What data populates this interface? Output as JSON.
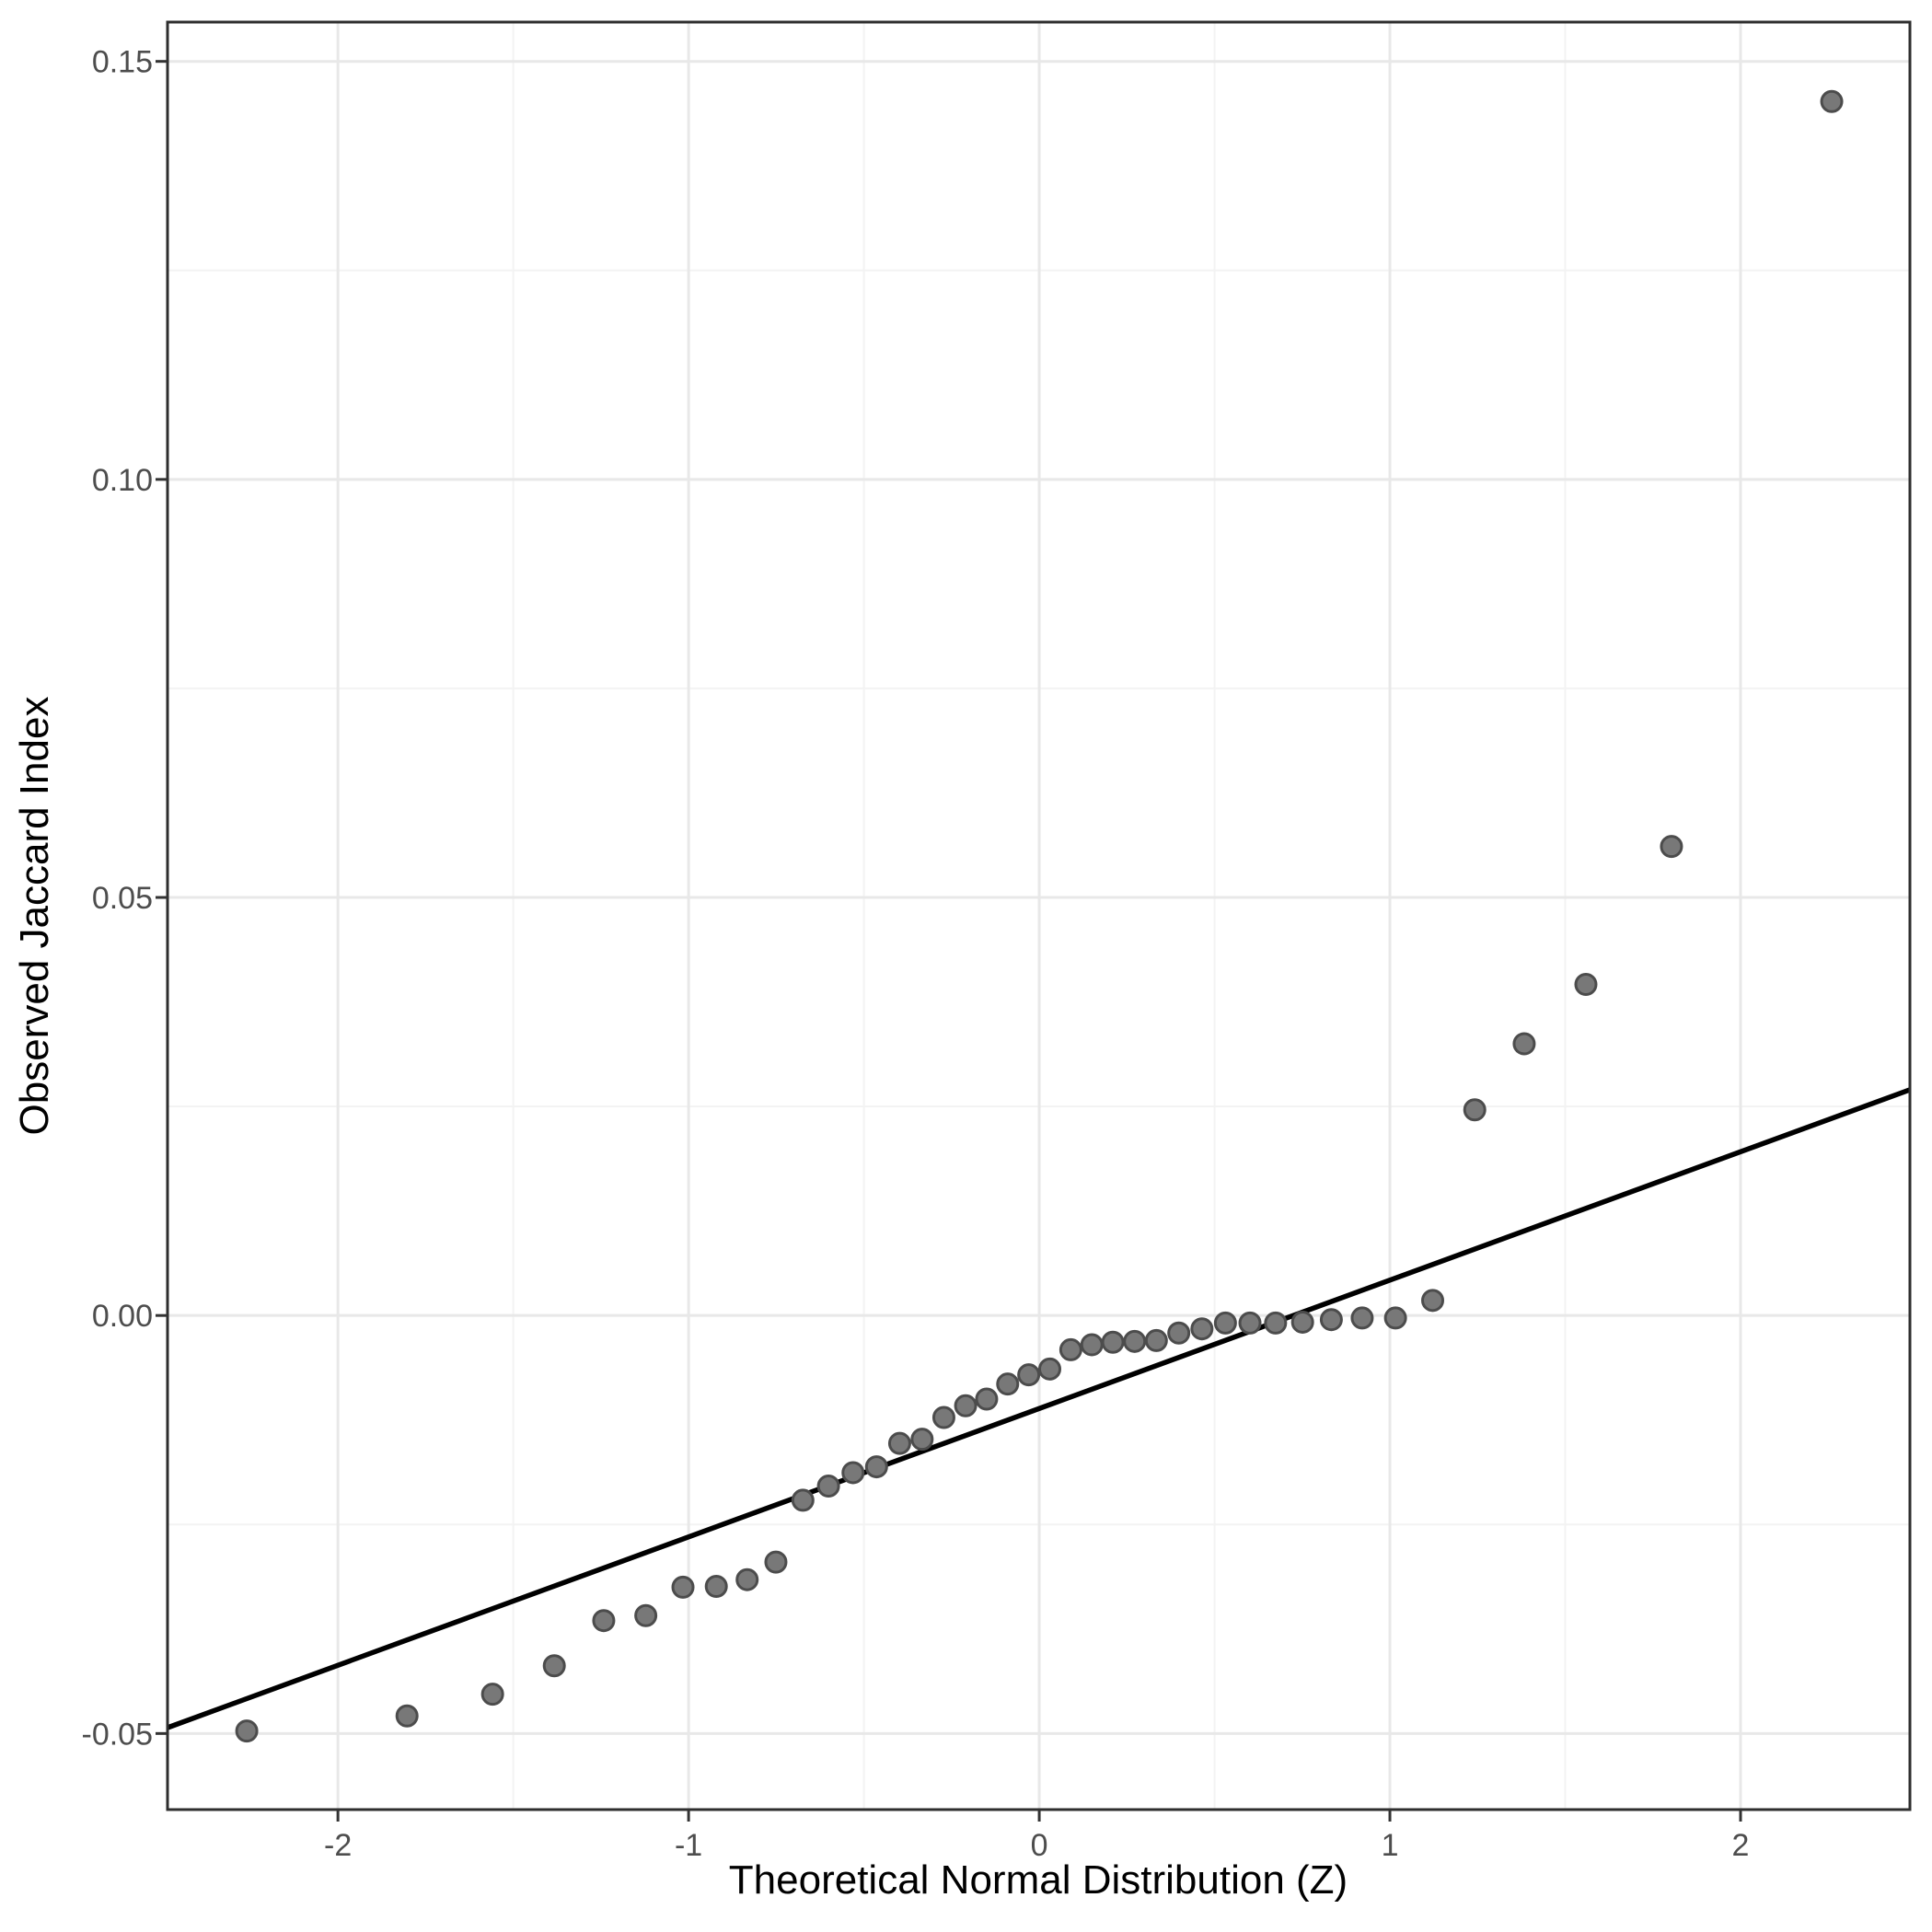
{
  "chart_data": {
    "type": "scatter",
    "title": "",
    "xlabel": "Theoretical Normal Distribution (Z)",
    "ylabel": "Observed Jaccard Index",
    "x_tick_values": [
      -2,
      -1,
      0,
      1,
      2
    ],
    "x_tick_labels": [
      "-2",
      "-1",
      "0",
      "1",
      "2"
    ],
    "y_tick_values": [
      -0.05,
      0.0,
      0.05,
      0.1,
      0.15
    ],
    "y_tick_labels": [
      "-0.05",
      "0.00",
      "0.05",
      "0.10",
      "0.15"
    ],
    "x_minor_ticks": [
      -1.5,
      -0.5,
      0.5,
      1.5
    ],
    "y_minor_ticks": [
      -0.025,
      0.025,
      0.075,
      0.125
    ],
    "xlim": [
      -2.486,
      2.483
    ],
    "ylim": [
      -0.0591,
      0.1547
    ],
    "grid": "major-and-minor",
    "legend": "none",
    "points": [
      [
        -2.26,
        -0.0497
      ],
      [
        -1.803,
        -0.0479
      ],
      [
        -1.559,
        -0.0453
      ],
      [
        -1.383,
        -0.0419
      ],
      [
        -1.242,
        -0.0365
      ],
      [
        -1.122,
        -0.0359
      ],
      [
        -1.016,
        -0.0325
      ],
      [
        -0.921,
        -0.0324
      ],
      [
        -0.833,
        -0.0316
      ],
      [
        -0.751,
        -0.0295
      ],
      [
        -0.674,
        -0.0221
      ],
      [
        -0.601,
        -0.0204
      ],
      [
        -0.531,
        -0.0188
      ],
      [
        -0.464,
        -0.0181
      ],
      [
        -0.398,
        -0.0153
      ],
      [
        -0.334,
        -0.0148
      ],
      [
        -0.272,
        -0.0122
      ],
      [
        -0.21,
        -0.0108
      ],
      [
        -0.15,
        -0.01
      ],
      [
        -0.09,
        -0.0082
      ],
      [
        -0.03,
        -0.0071
      ],
      [
        0.03,
        -0.0064
      ],
      [
        0.09,
        -0.0041
      ],
      [
        0.15,
        -0.0035
      ],
      [
        0.21,
        -0.0032
      ],
      [
        0.272,
        -0.0031
      ],
      [
        0.334,
        -0.003
      ],
      [
        0.398,
        -0.0021
      ],
      [
        0.464,
        -0.0016
      ],
      [
        0.531,
        -0.0009
      ],
      [
        0.601,
        -0.0009
      ],
      [
        0.674,
        -0.0009
      ],
      [
        0.751,
        -0.0008
      ],
      [
        0.833,
        -0.0005
      ],
      [
        0.921,
        -0.0003
      ],
      [
        1.016,
        -0.0003
      ],
      [
        1.122,
        0.0018
      ],
      [
        1.242,
        0.0246
      ],
      [
        1.383,
        0.0325
      ],
      [
        1.559,
        0.0396
      ],
      [
        1.803,
        0.0561
      ],
      [
        2.26,
        0.1452
      ]
    ],
    "reference_line": {
      "x1": -2.486,
      "y1": -0.0493,
      "x2": 2.483,
      "y2": 0.027
    },
    "colors": {
      "background": "#ffffff",
      "panel_background": "#ffffff",
      "panel_border": "#2e2e2e",
      "grid_major": "#e8e8e8",
      "grid_minor": "#f3f3f3",
      "tick": "#333333",
      "tick_label": "#4d4d4d",
      "axis_title": "#000000",
      "point_fill": "#787878",
      "point_stroke": "#4c4c4c",
      "reference_line_color": "#000000"
    }
  }
}
